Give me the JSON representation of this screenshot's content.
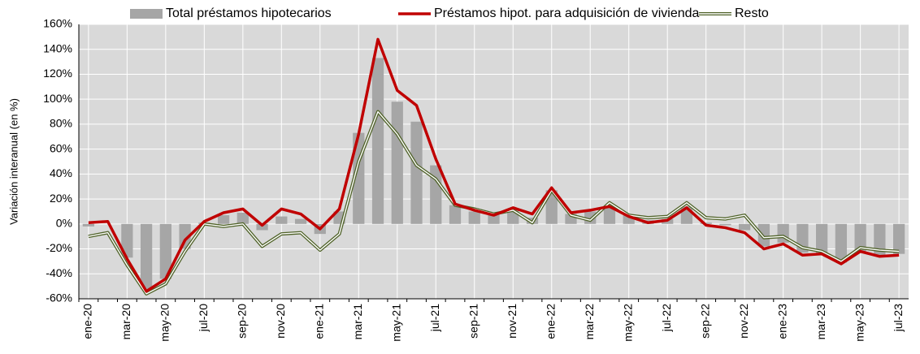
{
  "chart_data": {
    "type": "bar-line",
    "y_label": "Variación interanual (en %)",
    "categories": [
      "ene-20",
      null,
      "mar-20",
      null,
      "may-20",
      null,
      "jul-20",
      null,
      "sep-20",
      null,
      "nov-20",
      null,
      "ene-21",
      null,
      "mar-21",
      null,
      "may-21",
      null,
      "jul-21",
      null,
      "sep-21",
      null,
      "nov-21",
      null,
      "ene-22",
      null,
      "mar-22",
      null,
      "may-22",
      null,
      "jul-22",
      null,
      "sep-22",
      null,
      "nov-22",
      null,
      "ene-23",
      null,
      "mar-23",
      null,
      "may-23",
      null,
      "jul-23"
    ],
    "series": [
      {
        "name": "Total préstamos hipotecarios",
        "type": "bar",
        "color": "#a6a6a6",
        "values": [
          -2,
          0,
          -27,
          -52,
          -44,
          -20,
          1,
          7,
          9,
          -5,
          6,
          4,
          -8,
          10,
          73,
          133,
          98,
          82,
          47,
          15,
          10,
          8,
          11,
          5,
          27,
          8,
          10,
          14,
          7,
          3,
          4,
          14,
          1,
          -1,
          -5,
          -18,
          -15,
          -23,
          -24,
          -31,
          -22,
          -25,
          -24
        ]
      },
      {
        "name": "Préstamos hipot. para adquisición de vivienda",
        "type": "line",
        "color": "#c00000",
        "values": [
          1,
          2,
          -28,
          -54,
          -44,
          -13,
          2,
          9,
          12,
          -1,
          12,
          8,
          -4,
          12,
          72,
          148,
          107,
          95,
          52,
          16,
          11,
          7,
          13,
          8,
          29,
          9,
          11,
          14,
          6,
          1,
          3,
          13,
          -1,
          -3,
          -7,
          -20,
          -16,
          -25,
          -24,
          -32,
          -22,
          -26,
          -25
        ]
      },
      {
        "name": "Resto",
        "type": "line-outline",
        "color": "#4f6228",
        "values": [
          -10,
          -7,
          -33,
          -56,
          -48,
          -22,
          0,
          -2,
          0,
          -18,
          -8,
          -7,
          -21,
          -8,
          50,
          90,
          72,
          47,
          36,
          15,
          12,
          8,
          11,
          1,
          27,
          7,
          3,
          17,
          7,
          5,
          6,
          17,
          5,
          4,
          7,
          -11,
          -10,
          -19,
          -22,
          -30,
          -19,
          -21,
          -22
        ]
      }
    ],
    "ylim": [
      -60,
      160
    ],
    "yticks": [
      {
        "value": -60,
        "label": "-60%"
      },
      {
        "value": -40,
        "label": "-40%"
      },
      {
        "value": -20,
        "label": "-20%"
      },
      {
        "value": 0,
        "label": "0%"
      },
      {
        "value": 20,
        "label": "20%"
      },
      {
        "value": 40,
        "label": "40%"
      },
      {
        "value": 60,
        "label": "60%"
      },
      {
        "value": 80,
        "label": "80%"
      },
      {
        "value": 100,
        "label": "100%"
      },
      {
        "value": 120,
        "label": "120%"
      },
      {
        "value": 140,
        "label": "140%"
      },
      {
        "value": 160,
        "label": "160%"
      }
    ],
    "grid": true,
    "legend": "top",
    "plot_background": "#d9d9d9"
  }
}
